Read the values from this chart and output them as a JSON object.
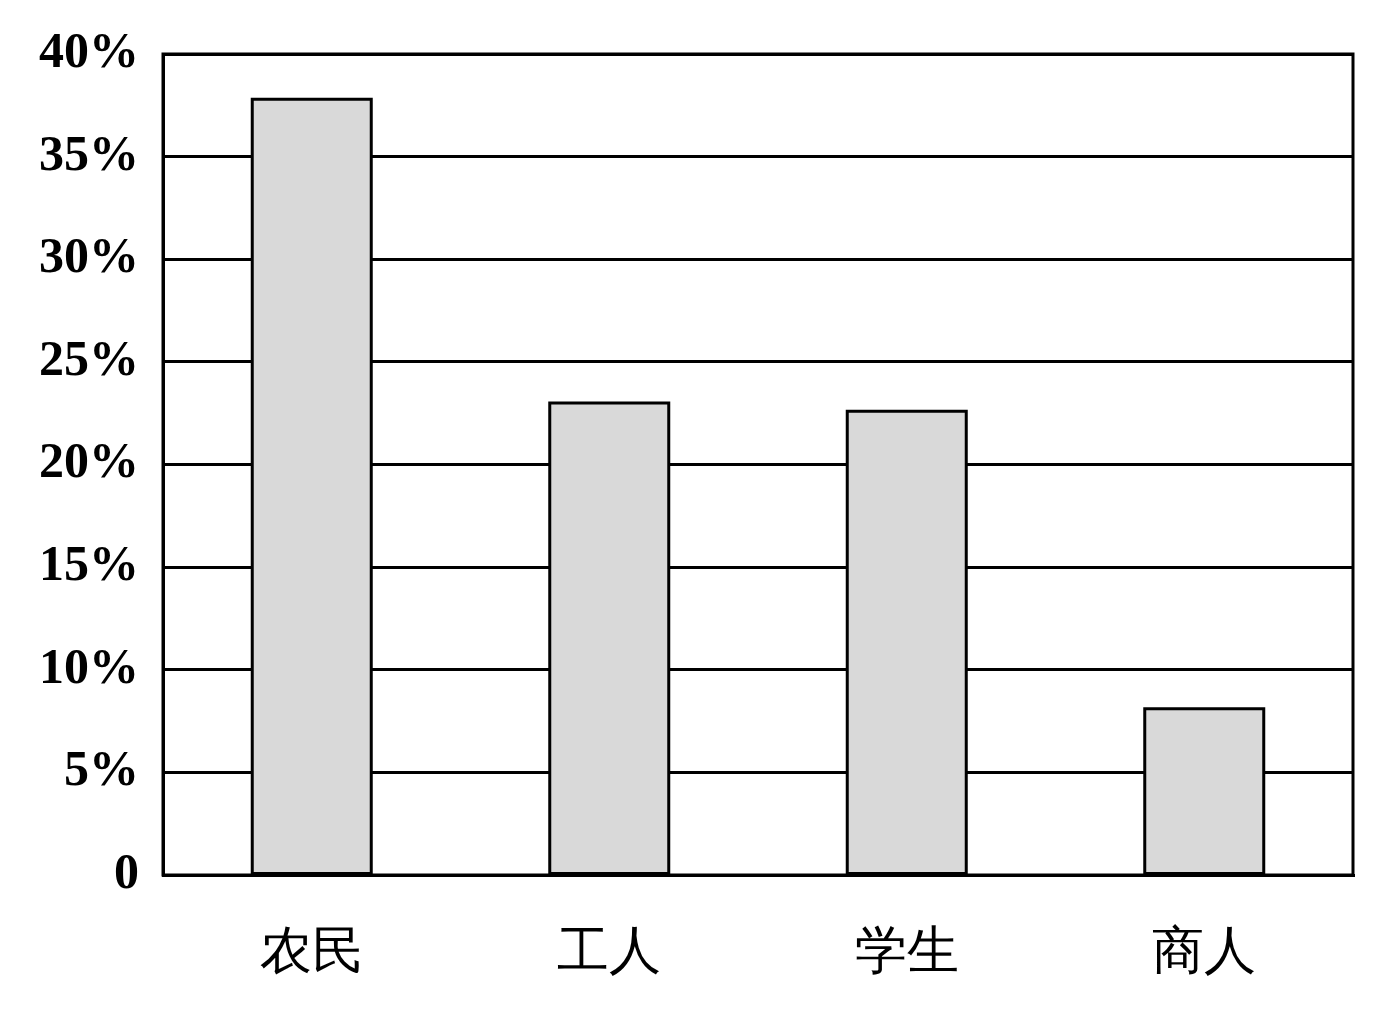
{
  "chart_data": {
    "type": "bar",
    "categories": [
      "农民",
      "工人",
      "学生",
      "商人"
    ],
    "values": [
      37.8,
      23.0,
      22.6,
      8.1
    ],
    "color": "#d9d9d9",
    "ylim": [
      0,
      40
    ],
    "yticks": [
      0,
      {
        "value": 5,
        "label": "5%"
      },
      {
        "value": 10,
        "label": "10%"
      },
      {
        "value": 15,
        "label": "15%"
      },
      {
        "value": 20,
        "label": "20%"
      },
      {
        "value": 25,
        "label": "25%"
      },
      {
        "value": 30,
        "label": "30%"
      },
      {
        "value": 35,
        "label": "35%"
      },
      {
        "value": 40,
        "label": "40%"
      }
    ],
    "grid": "y"
  }
}
